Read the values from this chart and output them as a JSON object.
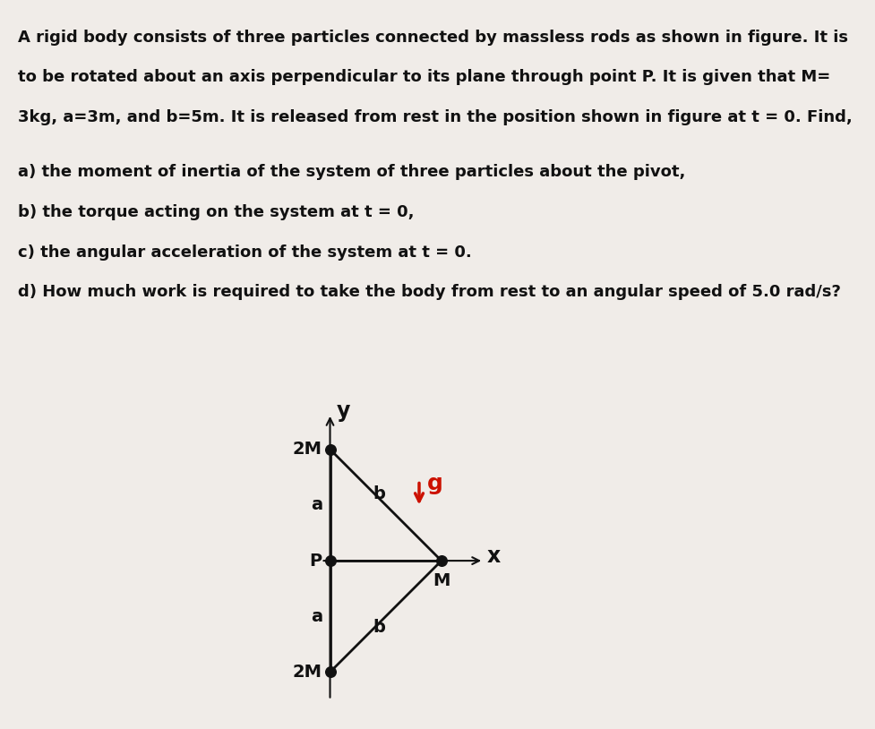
{
  "bg_color": "#f0ece8",
  "text_color": "#111111",
  "red_color": "#cc1100",
  "line1": "A rigid body consists of three particles connected by massless rods as shown in figure. It is",
  "line2": "to be rotated about an axis perpendicular to its plane through point P. It is given that M=",
  "line3": "3kg, a=3m, and b=5m. It is released from rest in the position shown in figure at t = 0. Find,",
  "q1": "a) the moment of inertia of the system of three particles about the pivot,",
  "q2": "b) the torque acting on the system at t = 0,",
  "q3": "c) the angular acceleration of the system at t = 0.",
  "q4": "d) How much work is required to take the body from rest to an angular speed of 5.0 rad/s?"
}
